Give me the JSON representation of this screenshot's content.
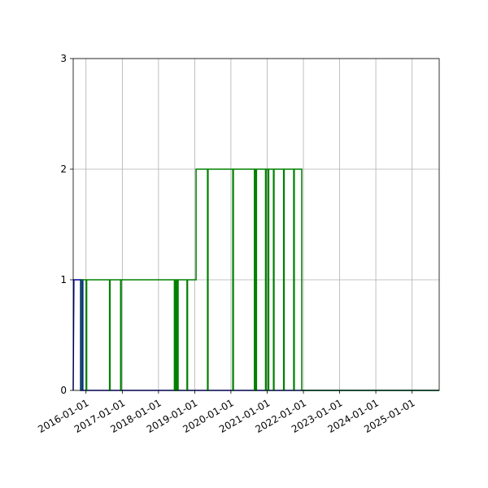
{
  "chart_data": {
    "type": "line",
    "title": "",
    "xlabel": "",
    "ylabel": "",
    "grid": true,
    "legend": "none",
    "xlim": [
      "2015-08-25",
      "2025-10-01"
    ],
    "ylim": [
      0,
      3
    ],
    "x_ticks": [
      "2016-01-01",
      "2017-01-01",
      "2018-01-01",
      "2019-01-01",
      "2020-01-01",
      "2021-01-01",
      "2022-01-01",
      "2023-01-01",
      "2024-01-01",
      "2025-01-01"
    ],
    "y_ticks": [
      "0",
      "1",
      "2",
      "3"
    ],
    "series": [
      {
        "color": "#0000aa",
        "points": [
          [
            "2015-08-25",
            0
          ],
          [
            "2015-09-01",
            1
          ],
          [
            "2015-11-08",
            1
          ],
          [
            "2015-11-08",
            0
          ],
          [
            "2015-11-22",
            0
          ],
          [
            "2015-11-22",
            1
          ],
          [
            "2015-11-30",
            1
          ],
          [
            "2015-11-30",
            0
          ],
          [
            "2025-10-01",
            0
          ]
        ]
      },
      {
        "color": "#008000",
        "points": [
          [
            "2015-11-20",
            0
          ],
          [
            "2015-11-20",
            1
          ],
          [
            "2016-01-02",
            1
          ],
          [
            "2016-01-02",
            0
          ],
          [
            "2016-01-08",
            0
          ],
          [
            "2016-01-08",
            1
          ],
          [
            "2016-08-25",
            1
          ],
          [
            "2016-08-25",
            0
          ],
          [
            "2016-08-31",
            0
          ],
          [
            "2016-08-31",
            1
          ],
          [
            "2016-12-15",
            1
          ],
          [
            "2016-12-15",
            0
          ],
          [
            "2016-12-21",
            0
          ],
          [
            "2016-12-21",
            1
          ],
          [
            "2018-06-10",
            1
          ],
          [
            "2018-06-10",
            0
          ],
          [
            "2018-06-16",
            0
          ],
          [
            "2018-06-16",
            1
          ],
          [
            "2018-06-25",
            1
          ],
          [
            "2018-06-25",
            0
          ],
          [
            "2018-07-01",
            0
          ],
          [
            "2018-07-01",
            1
          ],
          [
            "2018-07-12",
            1
          ],
          [
            "2018-07-12",
            0
          ],
          [
            "2018-07-18",
            0
          ],
          [
            "2018-07-18",
            1
          ],
          [
            "2018-10-15",
            1
          ],
          [
            "2018-10-15",
            0
          ],
          [
            "2018-10-21",
            0
          ],
          [
            "2018-10-21",
            1
          ],
          [
            "2019-01-15",
            1
          ],
          [
            "2019-01-15",
            2
          ],
          [
            "2019-05-10",
            2
          ],
          [
            "2019-05-10",
            0
          ],
          [
            "2019-05-16",
            0
          ],
          [
            "2019-05-16",
            2
          ],
          [
            "2020-01-20",
            2
          ],
          [
            "2020-01-20",
            0
          ],
          [
            "2020-01-26",
            0
          ],
          [
            "2020-01-26",
            2
          ],
          [
            "2020-08-25",
            2
          ],
          [
            "2020-08-25",
            0
          ],
          [
            "2020-08-30",
            0
          ],
          [
            "2020-08-30",
            2
          ],
          [
            "2020-09-10",
            2
          ],
          [
            "2020-09-10",
            0
          ],
          [
            "2020-09-15",
            0
          ],
          [
            "2020-09-15",
            2
          ],
          [
            "2020-12-15",
            2
          ],
          [
            "2020-12-15",
            0
          ],
          [
            "2020-12-21",
            0
          ],
          [
            "2020-12-21",
            2
          ],
          [
            "2021-01-10",
            2
          ],
          [
            "2021-01-10",
            0
          ],
          [
            "2021-01-16",
            0
          ],
          [
            "2021-01-16",
            2
          ],
          [
            "2021-03-05",
            2
          ],
          [
            "2021-03-05",
            0
          ],
          [
            "2021-03-11",
            0
          ],
          [
            "2021-03-11",
            2
          ],
          [
            "2021-06-15",
            2
          ],
          [
            "2021-06-15",
            0
          ],
          [
            "2021-06-21",
            0
          ],
          [
            "2021-06-21",
            2
          ],
          [
            "2021-09-25",
            2
          ],
          [
            "2021-09-25",
            0
          ],
          [
            "2021-10-01",
            0
          ],
          [
            "2021-10-01",
            2
          ],
          [
            "2021-12-15",
            2
          ],
          [
            "2021-12-15",
            0
          ],
          [
            "2025-10-01",
            0
          ]
        ]
      }
    ]
  }
}
